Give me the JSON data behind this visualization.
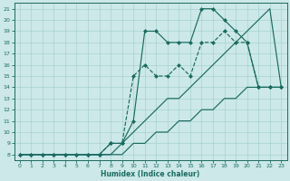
{
  "xlabel": "Humidex (Indice chaleur)",
  "bg_color": "#cce8e8",
  "line_color": "#1a6b60",
  "xlim": [
    -0.5,
    23.5
  ],
  "ylim": [
    7.5,
    21.5
  ],
  "yticks": [
    8,
    9,
    10,
    11,
    12,
    13,
    14,
    15,
    16,
    17,
    18,
    19,
    20,
    21
  ],
  "xticks": [
    0,
    1,
    2,
    3,
    4,
    5,
    6,
    7,
    8,
    9,
    10,
    11,
    12,
    13,
    14,
    15,
    16,
    17,
    18,
    19,
    20,
    21,
    22,
    23
  ],
  "series": [
    {
      "x": [
        0,
        1,
        2,
        3,
        4,
        5,
        6,
        7,
        8,
        9,
        10,
        11,
        12,
        13,
        14,
        15,
        16,
        17,
        18,
        19,
        20,
        21,
        22,
        23
      ],
      "y": [
        8,
        8,
        8,
        8,
        8,
        8,
        8,
        8,
        8,
        8,
        9,
        9,
        10,
        10,
        11,
        11,
        12,
        12,
        13,
        13,
        14,
        14,
        14,
        14
      ],
      "linestyle": "-",
      "marker": false
    },
    {
      "x": [
        0,
        1,
        2,
        3,
        4,
        5,
        6,
        7,
        8,
        9,
        10,
        11,
        12,
        13,
        14,
        15,
        16,
        17,
        18,
        19,
        20,
        21,
        22,
        23
      ],
      "y": [
        8,
        8,
        8,
        8,
        8,
        8,
        8,
        8,
        8,
        9,
        10,
        11,
        12,
        13,
        13,
        14,
        15,
        16,
        17,
        18,
        19,
        20,
        21,
        14
      ],
      "linestyle": "-",
      "marker": false
    },
    {
      "x": [
        0,
        1,
        2,
        3,
        4,
        5,
        6,
        7,
        8,
        9,
        10,
        11,
        12,
        13,
        14,
        15,
        16,
        17,
        18,
        19,
        20,
        21,
        22,
        23
      ],
      "y": [
        8,
        8,
        8,
        8,
        8,
        8,
        8,
        8,
        9,
        9,
        15,
        16,
        15,
        15,
        16,
        15,
        18,
        18,
        19,
        18,
        18,
        14,
        14,
        14
      ],
      "linestyle": "--",
      "marker": true
    },
    {
      "x": [
        0,
        1,
        2,
        3,
        4,
        5,
        6,
        7,
        8,
        9,
        10,
        11,
        12,
        13,
        14,
        15,
        16,
        17,
        18,
        19,
        20,
        21,
        22,
        23
      ],
      "y": [
        8,
        8,
        8,
        8,
        8,
        8,
        8,
        8,
        9,
        9,
        11,
        19,
        19,
        18,
        18,
        18,
        21,
        21,
        20,
        19,
        18,
        14,
        14,
        14
      ],
      "linestyle": "-",
      "marker": true
    }
  ]
}
